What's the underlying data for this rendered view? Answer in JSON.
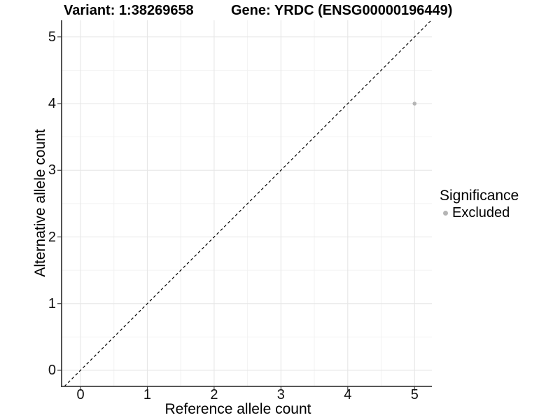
{
  "figure": {
    "background_color": "#ffffff",
    "text_color": "#000000"
  },
  "chart_data": {
    "type": "scatter",
    "title_left": "Variant: 1:38269658",
    "title_right": "Gene: YRDC (ENSG00000196449)",
    "xlabel": "Reference allele count",
    "ylabel": "Alternative allele count",
    "x_ticks": [
      0,
      1,
      2,
      3,
      4,
      5
    ],
    "y_ticks": [
      0,
      1,
      2,
      3,
      4,
      5
    ],
    "xlim": [
      -0.28,
      5.26
    ],
    "ylim": [
      -0.24,
      5.25
    ],
    "grid": {
      "major": true,
      "minor": true,
      "major_color": "#e6e6e6",
      "minor_color": "#f2f2f2"
    },
    "axis_line_color": "#404040",
    "tick_mark_color": "#333333",
    "reference_line": {
      "type": "identity",
      "style": "dashed",
      "color": "#000000"
    },
    "series": [
      {
        "name": "Excluded",
        "color": "#b5b5b5",
        "points": [
          {
            "x": 5,
            "y": 4
          }
        ]
      }
    ],
    "legend": {
      "title": "Significance",
      "position": "right",
      "items": [
        {
          "label": "Excluded",
          "color": "#b5b5b5"
        }
      ]
    }
  }
}
